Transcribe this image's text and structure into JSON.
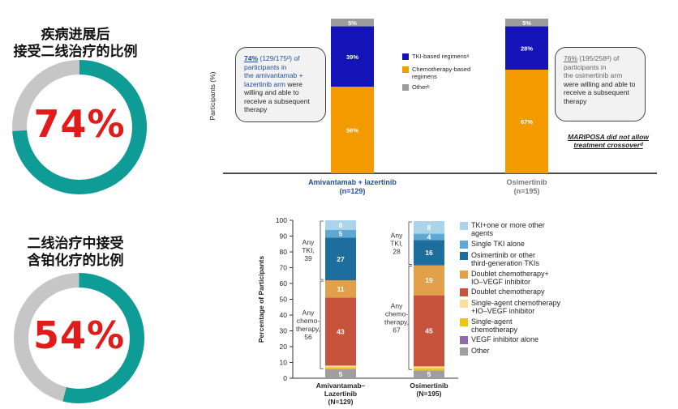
{
  "left_panel": {
    "top": {
      "title_line1": "疾病进展后",
      "title_line2": "接受二线治疗的比例",
      "percent_label": "74%",
      "fraction": 0.74
    },
    "bottom": {
      "title_line1": "二线治疗中接受",
      "title_line2": "含铂化疗的比例",
      "percent_label": "54%",
      "fraction": 0.54
    },
    "colors": {
      "filled": "#0f9c96",
      "remaining": "#c6c6c6",
      "percent_text": "#e21a1a"
    }
  },
  "chart_data": [
    {
      "type": "bar",
      "stacked": true,
      "ylabel": "Participants (%)",
      "categories": [
        "Amivantamab + lazertinib (n=129)",
        "Osimertinib (n=195)"
      ],
      "category_labels": [
        {
          "line1": "Amivantamab + lazertinib",
          "line2": "(n=129)"
        },
        {
          "line1": "Osimertinib",
          "line2": "(n=195)"
        }
      ],
      "ylim": [
        0,
        100
      ],
      "series": [
        {
          "name": "Chemotherapy-based regimens",
          "values": [
            56,
            67
          ],
          "labels": [
            "56%",
            "67%"
          ],
          "color": "#f39a00"
        },
        {
          "name": "TKI-based regimens",
          "values": [
            39,
            28
          ],
          "labels": [
            "39%",
            "28%"
          ],
          "color": "#1313b8"
        },
        {
          "name": "Other",
          "values": [
            5,
            5
          ],
          "labels": [
            "5%",
            "5%"
          ],
          "color": "#9b9b9b"
        }
      ],
      "legend": [
        {
          "label": "TKI-based regimensᵃ",
          "color": "#1313b8"
        },
        {
          "label": "Chemotherapy-based regimens",
          "color": "#f39a00"
        },
        {
          "label": "Otherᵇ",
          "color": "#9b9b9b"
        }
      ],
      "callout_left": {
        "pct": "74%",
        "frac": " (129/175ᵈ) of",
        "line2": "participants in",
        "line3": "the amivantamab +",
        "line4": "lazertinib arm",
        "rest": " were willing and able to receive a subsequent therapy"
      },
      "callout_right": {
        "pct": "76%",
        "frac": " (195/258ᵈ) of",
        "line2": "participants in",
        "line3": "the osimertinib arm",
        "rest": "were willing and able to receive a subsequent therapy"
      },
      "note_line1": "MARIPOSA did not allow",
      "note_line2": "treatment crossoverᵈ"
    },
    {
      "type": "bar",
      "stacked": true,
      "ylabel": "Percentage of Participants",
      "yticks": [
        0,
        10,
        20,
        30,
        40,
        50,
        60,
        70,
        80,
        90,
        100
      ],
      "ylim": [
        0,
        100
      ],
      "categories": [
        "Amivantamab–Lazertinib (N=129)",
        "Osimertinib (N=195)"
      ],
      "category_labels": [
        {
          "line1": "Amivantamab–",
          "line2": "Lazertinib",
          "line3": "(N=129)"
        },
        {
          "line1": "Osimertinib",
          "line2": "(N=195)",
          "line3": ""
        }
      ],
      "series": [
        {
          "name": "Other",
          "values": [
            5,
            5
          ],
          "labels": [
            "5",
            "5"
          ],
          "color": "#9e9e9e"
        },
        {
          "name": "VEGF inhibitor alone",
          "values": [
            0.5,
            0
          ],
          "labels": [
            "",
            ""
          ],
          "color": "#8e6bb0"
        },
        {
          "name": "Single-agent chemotherapy",
          "values": [
            1.5,
            1.5
          ],
          "labels": [
            "",
            ""
          ],
          "color": "#f2c21b"
        },
        {
          "name": "Single-agent chemotherapy+IO–VEGF inhibitor",
          "values": [
            1,
            1
          ],
          "labels": [
            "",
            ""
          ],
          "color": "#f8df9a"
        },
        {
          "name": "Doublet chemotherapy",
          "values": [
            43,
            45
          ],
          "labels": [
            "43",
            "45"
          ],
          "color": "#c8533c"
        },
        {
          "name": "Doublet chemotherapy+IO–VEGF inhibitor",
          "values": [
            11,
            19
          ],
          "labels": [
            "11",
            "19"
          ],
          "color": "#e2a04a"
        },
        {
          "name": "Osimertinib or other third-generation TKIs",
          "values": [
            27,
            16
          ],
          "labels": [
            "27",
            "16"
          ],
          "color": "#1d6e9c"
        },
        {
          "name": "Single TKI alone",
          "values": [
            5,
            4
          ],
          "labels": [
            "5",
            "4"
          ],
          "color": "#5ea9d3"
        },
        {
          "name": "TKI+one or more other agents",
          "values": [
            6,
            8
          ],
          "labels": [
            "6",
            "8"
          ],
          "color": "#abd4ea"
        }
      ],
      "brackets": [
        {
          "bar": 0,
          "group": "tki",
          "lines": [
            "Any",
            "TKI,",
            "39"
          ]
        },
        {
          "bar": 0,
          "group": "chemo",
          "lines": [
            "Any",
            "chemo-",
            "therapy,",
            "56"
          ]
        },
        {
          "bar": 1,
          "group": "tki",
          "lines": [
            "Any",
            "TKI,",
            "28"
          ]
        },
        {
          "bar": 1,
          "group": "chemo",
          "lines": [
            "Any",
            "chemo-",
            "therapy,",
            "67"
          ]
        }
      ],
      "legend": [
        {
          "line1": "TKI+one or more other",
          "line2": "agents",
          "color": "#abd4ea"
        },
        {
          "line1": "Single TKI alone",
          "line2": "",
          "color": "#5ea9d3"
        },
        {
          "line1": "Osimertinib or other",
          "line2": "third-generation TKIs",
          "color": "#1d6e9c"
        },
        {
          "line1": "Doublet chemotherapy+",
          "line2": "IO–VEGF inhibitor",
          "color": "#e2a04a"
        },
        {
          "line1": "Doublet chemotherapy",
          "line2": "",
          "color": "#c8533c"
        },
        {
          "line1": "Single-agent chemotherapy",
          "line2": "+IO–VEGF inhibitor",
          "color": "#f8df9a"
        },
        {
          "line1": "Single-agent",
          "line2": "chemotherapy",
          "color": "#f2c21b"
        },
        {
          "line1": "VEGF inhibitor alone",
          "line2": "",
          "color": "#8e6bb0"
        },
        {
          "line1": "Other",
          "line2": "",
          "color": "#9e9e9e"
        }
      ]
    }
  ]
}
